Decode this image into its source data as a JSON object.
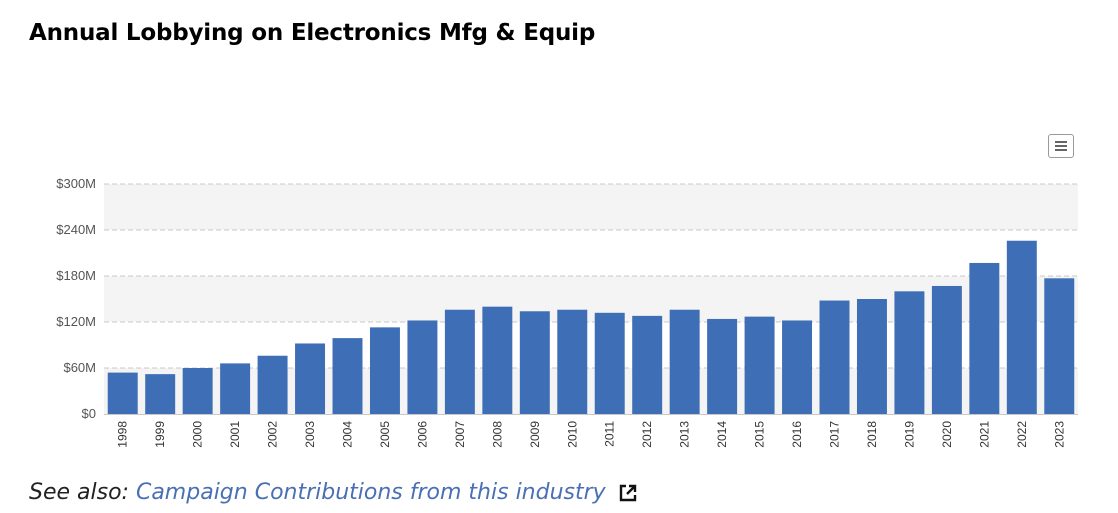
{
  "title": "Annual Lobbying on Electronics Mfg & Equip",
  "chart_menu_icon": "hamburger-menu-icon",
  "see_also": {
    "prefix": "See also:",
    "link_text": "Campaign Contributions from this industry",
    "icon": "external-link-icon"
  },
  "colors": {
    "bar": "#3e6fb6",
    "plot_band": "#f4f4f4",
    "grid": "#c8c8c8",
    "link": "#4a6fb5"
  },
  "chart_data": {
    "type": "bar",
    "title": "Annual Lobbying on Electronics Mfg & Equip",
    "categories": [
      "1998",
      "1999",
      "2000",
      "2001",
      "2002",
      "2003",
      "2004",
      "2005",
      "2006",
      "2007",
      "2008",
      "2009",
      "2010",
      "2011",
      "2012",
      "2013",
      "2014",
      "2015",
      "2016",
      "2017",
      "2018",
      "2019",
      "2020",
      "2021",
      "2022",
      "2023"
    ],
    "values": [
      54,
      52,
      60,
      66,
      76,
      92,
      99,
      113,
      122,
      136,
      140,
      134,
      136,
      132,
      128,
      136,
      124,
      127,
      122,
      148,
      150,
      160,
      167,
      197,
      226,
      177
    ],
    "value_unit": "millions USD",
    "ylim": [
      0,
      300
    ],
    "yticks": [
      0,
      60,
      120,
      180,
      240,
      300
    ],
    "ytick_labels": [
      "$0",
      "$60M",
      "$120M",
      "$180M",
      "$240M",
      "$300M"
    ],
    "xlabel": "",
    "ylabel": "",
    "grid": "dashed horizontal",
    "legend": "none"
  }
}
